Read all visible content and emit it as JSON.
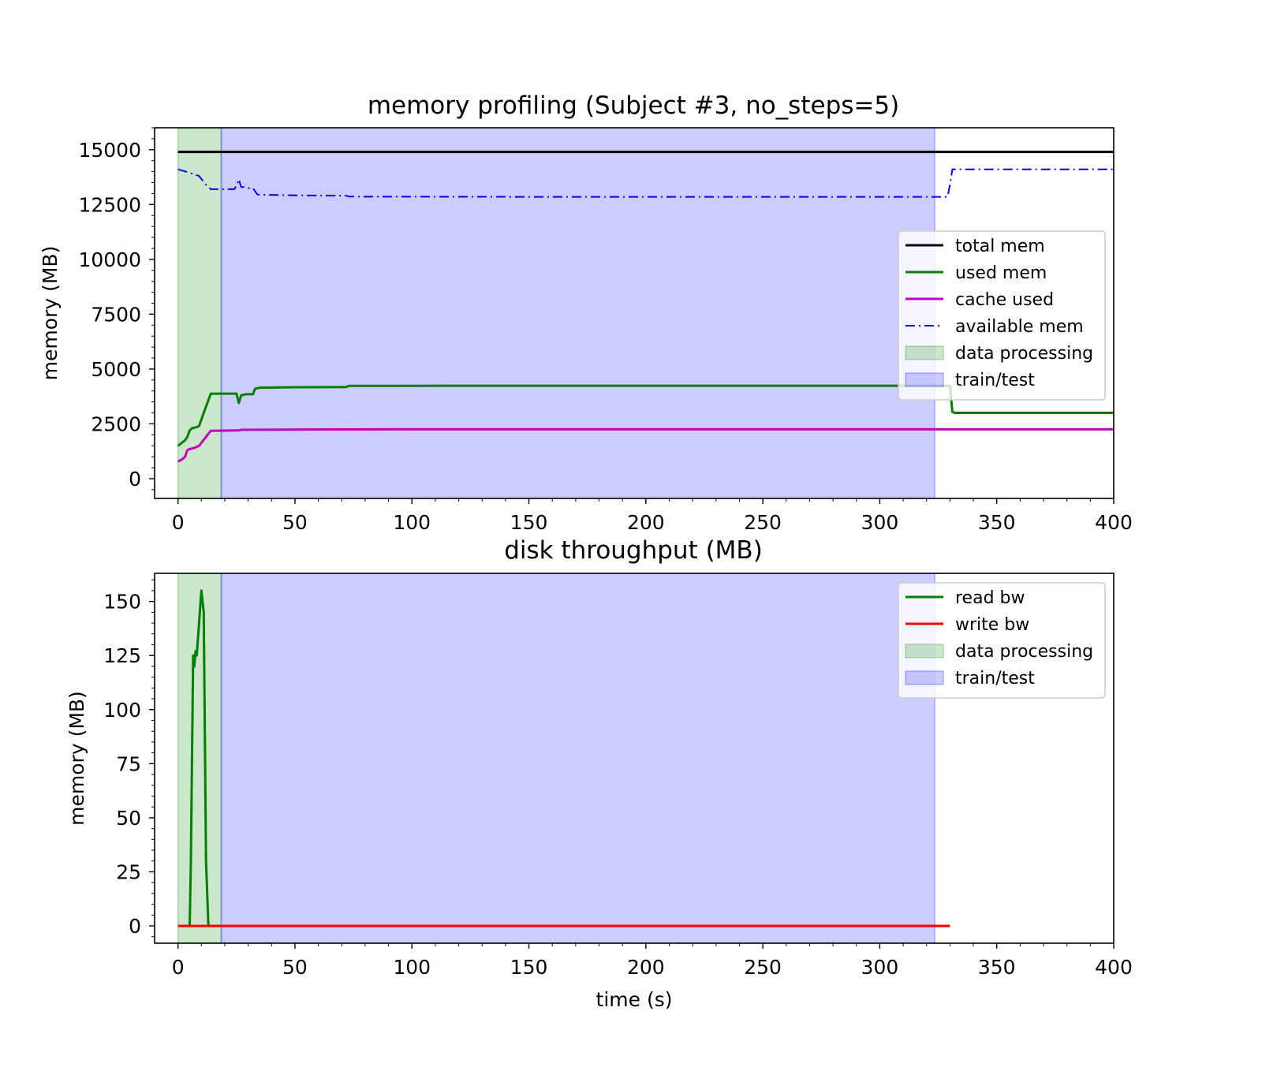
{
  "chart_data": [
    {
      "type": "line",
      "title": "memory profiling (Subject #3, no_steps=5)",
      "xlabel": "",
      "ylabel": "memory (MB)",
      "xlim": [
        -10,
        400
      ],
      "ylim": [
        -900,
        16000
      ],
      "x_ticks": [
        0,
        50,
        100,
        150,
        200,
        250,
        300,
        350,
        400
      ],
      "y_ticks": [
        0,
        2500,
        5000,
        7500,
        10000,
        12500,
        15000
      ],
      "legend_position": "center-right",
      "spans": [
        {
          "name": "data processing",
          "start": 0,
          "end": 18.5,
          "color": "#008000",
          "opacity": 0.2
        },
        {
          "name": "train/test",
          "start": 18.5,
          "end": 323.5,
          "color": "#0000ff",
          "opacity": 0.2
        }
      ],
      "series": [
        {
          "name": "total mem",
          "color": "#000000",
          "dash": "solid",
          "x": [
            0,
            400
          ],
          "y": [
            14900,
            14900
          ]
        },
        {
          "name": "used mem",
          "color": "#008000",
          "dash": "solid",
          "x": [
            0,
            3,
            4,
            5,
            6,
            8,
            9,
            11,
            14,
            17,
            20,
            25,
            26,
            27,
            29,
            32,
            33,
            35,
            50,
            72,
            73,
            115,
            300,
            323.5,
            330,
            331,
            332,
            400
          ],
          "y": [
            1500,
            1750,
            1900,
            2200,
            2300,
            2350,
            2400,
            3000,
            3870,
            3880,
            3880,
            3880,
            3450,
            3800,
            3850,
            3850,
            4100,
            4150,
            4170,
            4180,
            4230,
            4240,
            4240,
            4240,
            4240,
            3050,
            3000,
            3000
          ]
        },
        {
          "name": "cache used",
          "color": "#c000c0",
          "dash": "solid",
          "x": [
            0,
            2,
            3,
            4,
            5,
            7,
            9,
            14,
            18,
            26,
            27,
            50,
            100,
            400
          ],
          "y": [
            780,
            900,
            1000,
            1300,
            1350,
            1400,
            1500,
            2180,
            2190,
            2200,
            2230,
            2240,
            2250,
            2250
          ]
        },
        {
          "name": "available mem",
          "color": "#0000ff",
          "dash": "dashdot",
          "x": [
            0,
            5,
            9,
            12,
            14,
            17,
            20,
            24,
            25,
            26,
            27,
            28,
            30,
            32,
            34,
            50,
            72,
            73,
            150,
            325,
            329,
            330,
            331,
            332,
            400
          ],
          "y": [
            14100,
            13950,
            13800,
            13400,
            13200,
            13200,
            13200,
            13200,
            13350,
            13650,
            13300,
            13300,
            13250,
            13250,
            12950,
            12920,
            12900,
            12860,
            12850,
            12850,
            12850,
            13400,
            14100,
            14100,
            14100
          ]
        }
      ]
    },
    {
      "type": "line",
      "title": "disk throughput (MB)",
      "xlabel": "time (s)",
      "ylabel": "memory (MB)",
      "xlim": [
        -10,
        400
      ],
      "ylim": [
        -8,
        163
      ],
      "x_ticks": [
        0,
        50,
        100,
        150,
        200,
        250,
        300,
        350,
        400
      ],
      "y_ticks": [
        0,
        25,
        50,
        75,
        100,
        125,
        150
      ],
      "legend_position": "top-right",
      "spans": [
        {
          "name": "data processing",
          "start": 0,
          "end": 18.5,
          "color": "#008000",
          "opacity": 0.2
        },
        {
          "name": "train/test",
          "start": 18.5,
          "end": 323.5,
          "color": "#0000ff",
          "opacity": 0.2
        }
      ],
      "series": [
        {
          "name": "read bw",
          "color": "#008000",
          "dash": "solid",
          "x": [
            0,
            5,
            5.5,
            6,
            6.5,
            7,
            7.5,
            8,
            9,
            10,
            11,
            12,
            13,
            14,
            330
          ],
          "y": [
            0,
            0,
            30,
            80,
            125,
            120,
            127,
            125,
            140,
            155,
            145,
            30,
            0,
            0,
            0
          ]
        },
        {
          "name": "write bw",
          "color": "#ff0000",
          "dash": "solid",
          "x": [
            0,
            330
          ],
          "y": [
            0,
            0
          ]
        }
      ]
    }
  ]
}
